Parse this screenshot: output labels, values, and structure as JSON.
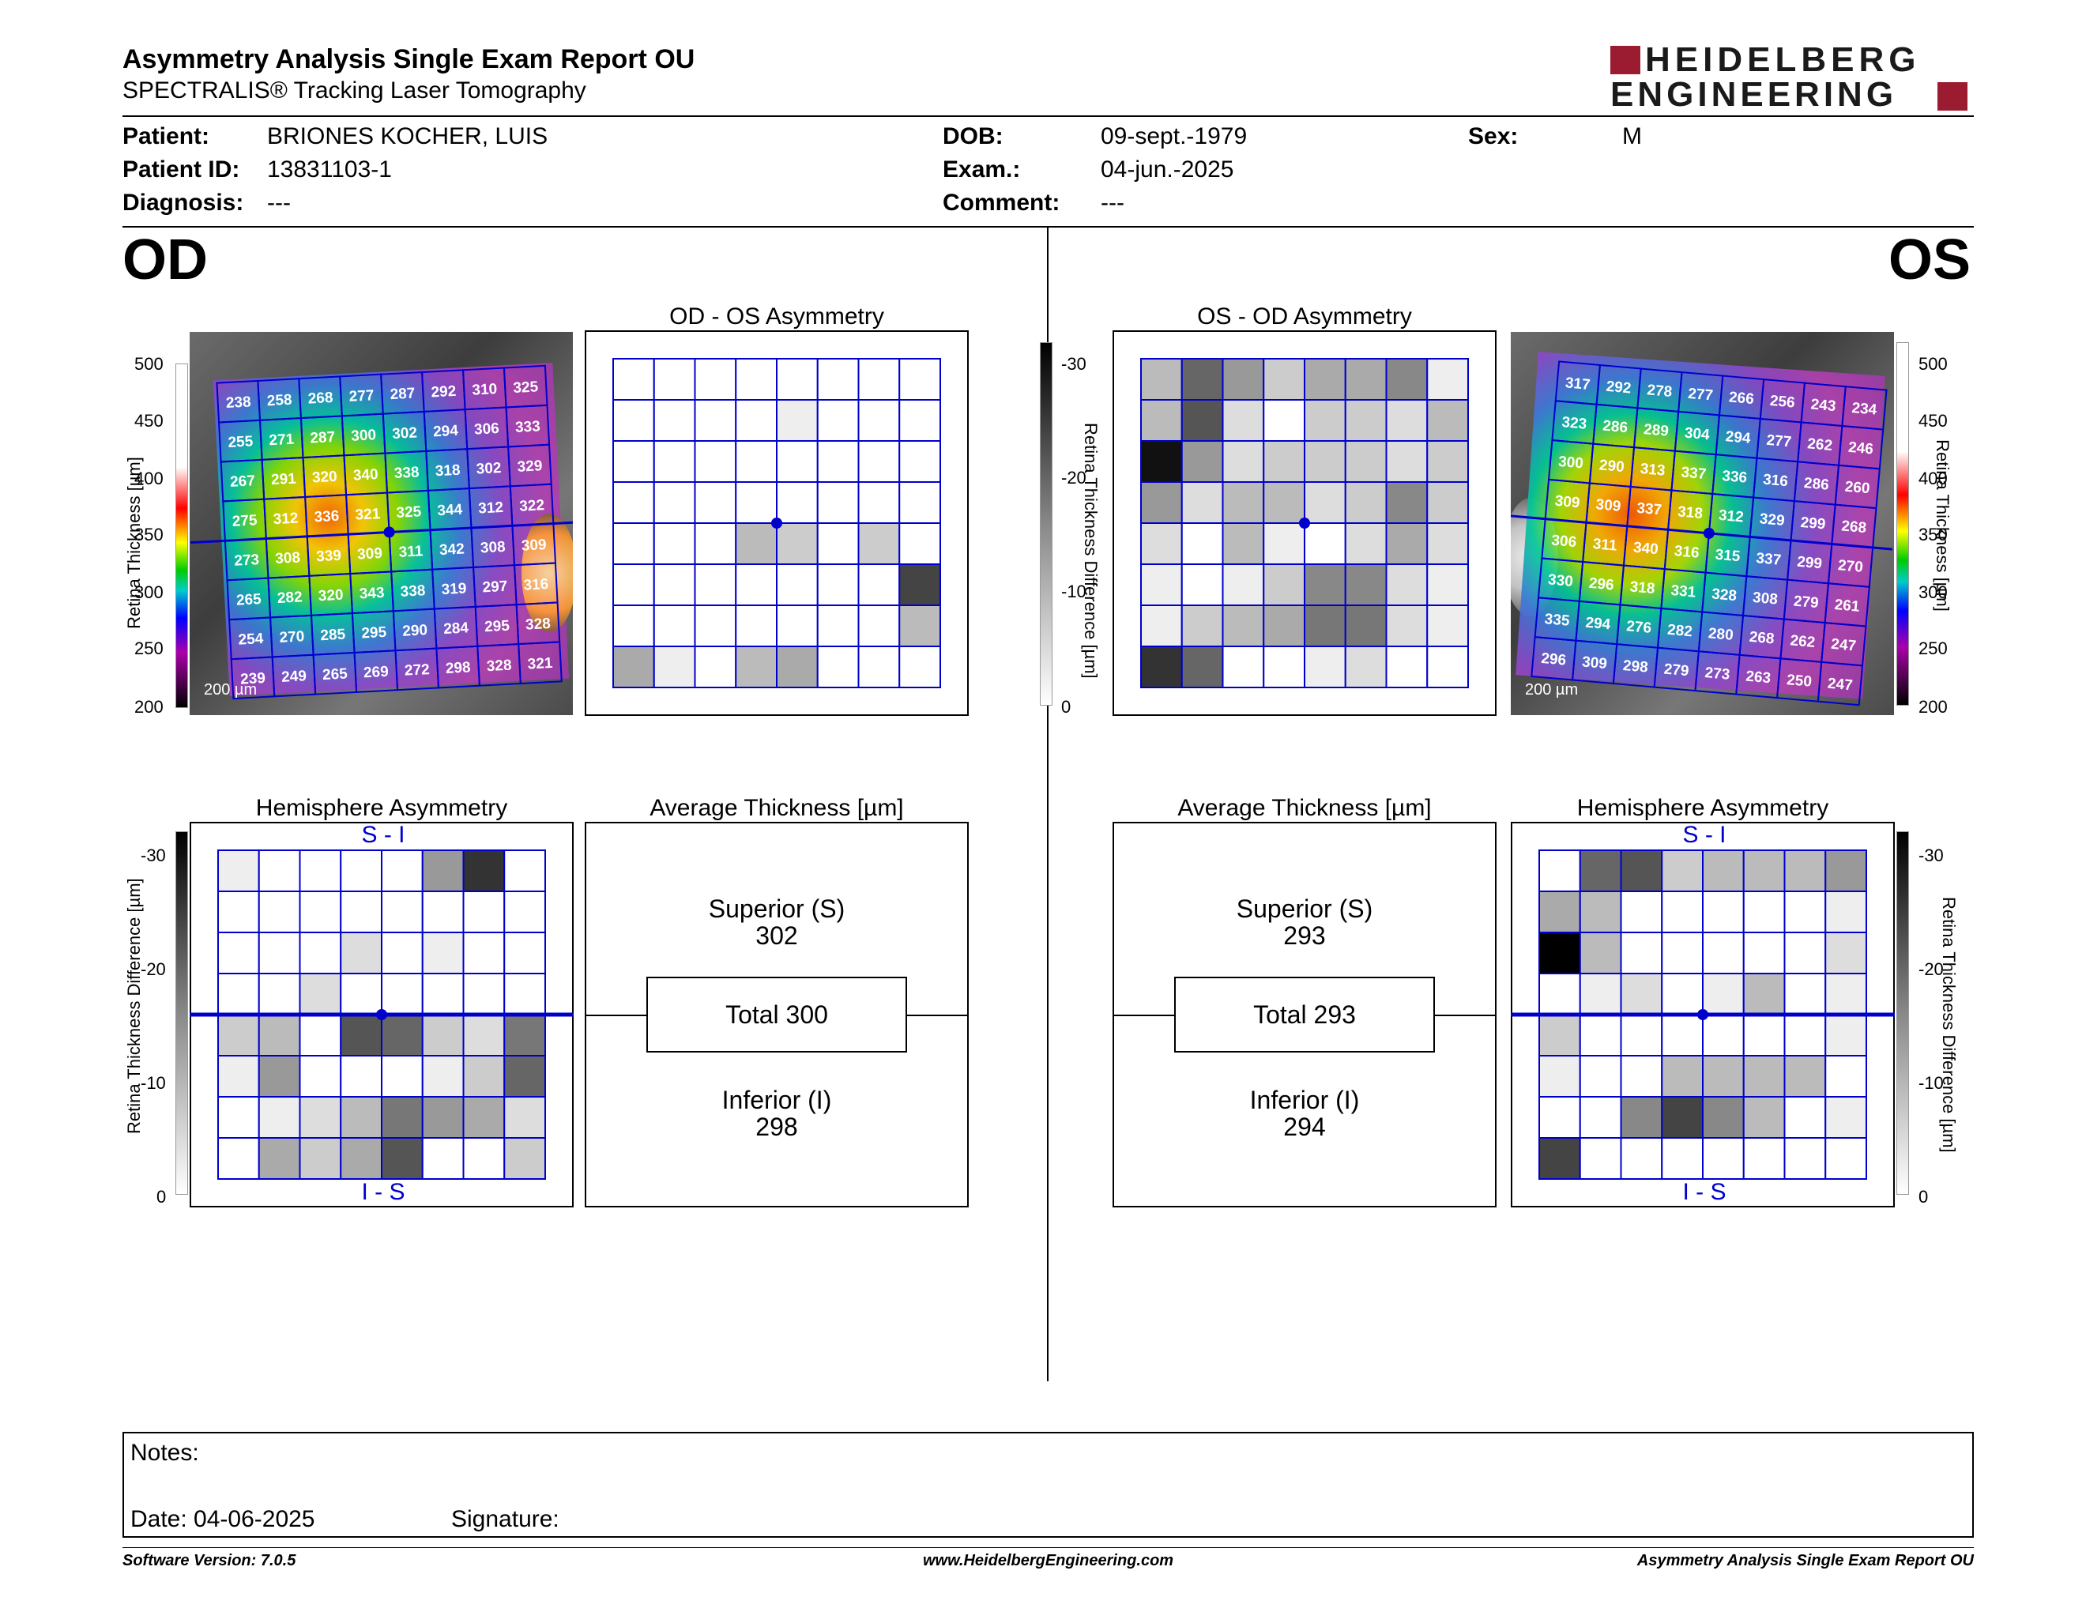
{
  "header": {
    "title": "Asymmetry Analysis Single Exam Report OU",
    "subtitle": "SPECTRALIS® Tracking Laser Tomography",
    "logo_line1": "HEIDELBERG",
    "logo_line2": "ENGINEERING"
  },
  "patient": {
    "patient_label": "Patient:",
    "patient_value": "BRIONES KOCHER, LUIS",
    "id_label": "Patient ID:",
    "id_value": "13831103-1",
    "diagnosis_label": "Diagnosis:",
    "diagnosis_value": "---",
    "dob_label": "DOB:",
    "dob_value": "09-sept.-1979",
    "exam_label": "Exam.:",
    "exam_value": "04-jun.-2025",
    "comment_label": "Comment:",
    "comment_value": "---",
    "sex_label": "Sex:",
    "sex_value": "M"
  },
  "eyes": {
    "left": "OD",
    "right": "OS"
  },
  "colorbar": {
    "thickness_label": "Retina Thickness [µm]",
    "thickness_ticks": [
      "500",
      "450",
      "400",
      "350",
      "300",
      "250",
      "200"
    ],
    "diff_label": "Retina Thickness Difference [µm]",
    "diff_ticks": [
      "-30",
      "-20",
      "-10",
      "0"
    ],
    "scale_label": "200 µm"
  },
  "od": {
    "thickness_grid": [
      [
        "238",
        "258",
        "268",
        "277",
        "287",
        "292",
        "310",
        "325"
      ],
      [
        "255",
        "271",
        "287",
        "300",
        "302",
        "294",
        "306",
        "333"
      ],
      [
        "267",
        "291",
        "320",
        "340",
        "338",
        "318",
        "302",
        "329"
      ],
      [
        "275",
        "312",
        "336",
        "321",
        "325",
        "344",
        "312",
        "322"
      ],
      [
        "273",
        "308",
        "339",
        "309",
        "311",
        "342",
        "308",
        "309"
      ],
      [
        "265",
        "282",
        "320",
        "343",
        "338",
        "319",
        "297",
        "316"
      ],
      [
        "254",
        "270",
        "285",
        "295",
        "290",
        "284",
        "295",
        "328"
      ],
      [
        "239",
        "249",
        "265",
        "269",
        "272",
        "298",
        "328",
        "321"
      ]
    ],
    "asym_title": "OD - OS Asymmetry",
    "asym_grid": [
      [
        0,
        0,
        0,
        0,
        0,
        0,
        0,
        0
      ],
      [
        0,
        0,
        0,
        0,
        2,
        0,
        0,
        0
      ],
      [
        0,
        0,
        0,
        0,
        0,
        0,
        0,
        0
      ],
      [
        0,
        0,
        0,
        0,
        0,
        0,
        0,
        0
      ],
      [
        0,
        0,
        0,
        8,
        6,
        0,
        6,
        0
      ],
      [
        0,
        0,
        0,
        0,
        0,
        0,
        0,
        22
      ],
      [
        0,
        0,
        0,
        0,
        0,
        0,
        0,
        8
      ],
      [
        10,
        2,
        0,
        8,
        10,
        0,
        0,
        0
      ]
    ],
    "hemi_title": "Hemisphere Asymmetry",
    "hemi_top": "S - I",
    "hemi_bottom": "I - S",
    "hemi_grid": [
      [
        2,
        0,
        0,
        0,
        0,
        12,
        24,
        0
      ],
      [
        0,
        0,
        0,
        0,
        0,
        0,
        0,
        0
      ],
      [
        0,
        0,
        0,
        4,
        0,
        2,
        0,
        0
      ],
      [
        0,
        0,
        4,
        0,
        0,
        0,
        0,
        0
      ],
      [
        6,
        8,
        0,
        20,
        18,
        6,
        4,
        16
      ],
      [
        2,
        12,
        0,
        0,
        0,
        2,
        6,
        18
      ],
      [
        0,
        2,
        4,
        8,
        16,
        12,
        10,
        4
      ],
      [
        0,
        10,
        6,
        10,
        20,
        0,
        0,
        6
      ]
    ],
    "avg_title": "Average Thickness [µm]",
    "superior_label": "Superior (S)",
    "superior_value": "302",
    "total": "Total 300",
    "inferior_label": "Inferior (I)",
    "inferior_value": "298"
  },
  "os": {
    "thickness_grid": [
      [
        "317",
        "292",
        "278",
        "277",
        "266",
        "256",
        "243",
        "234"
      ],
      [
        "323",
        "286",
        "289",
        "304",
        "294",
        "277",
        "262",
        "246"
      ],
      [
        "300",
        "290",
        "313",
        "337",
        "336",
        "316",
        "286",
        "260"
      ],
      [
        "309",
        "309",
        "337",
        "318",
        "312",
        "329",
        "299",
        "268"
      ],
      [
        "306",
        "311",
        "340",
        "316",
        "315",
        "337",
        "299",
        "270"
      ],
      [
        "330",
        "296",
        "318",
        "331",
        "328",
        "308",
        "279",
        "261"
      ],
      [
        "335",
        "294",
        "276",
        "282",
        "280",
        "268",
        "262",
        "247"
      ],
      [
        "296",
        "309",
        "298",
        "279",
        "273",
        "263",
        "250",
        "247"
      ]
    ],
    "asym_title": "OS - OD Asymmetry",
    "asym_grid": [
      [
        8,
        18,
        12,
        6,
        10,
        10,
        14,
        2
      ],
      [
        8,
        20,
        4,
        0,
        6,
        6,
        4,
        8
      ],
      [
        28,
        12,
        4,
        6,
        6,
        6,
        4,
        6
      ],
      [
        12,
        4,
        8,
        8,
        4,
        6,
        14,
        6
      ],
      [
        4,
        0,
        8,
        2,
        0,
        4,
        10,
        4
      ],
      [
        2,
        0,
        2,
        6,
        14,
        14,
        4,
        2
      ],
      [
        2,
        6,
        8,
        10,
        16,
        16,
        4,
        2
      ],
      [
        24,
        18,
        0,
        0,
        2,
        4,
        0,
        0
      ]
    ],
    "hemi_title": "Hemisphere Asymmetry",
    "hemi_top": "S - I",
    "hemi_bottom": "I - S",
    "hemi_grid": [
      [
        0,
        18,
        20,
        6,
        8,
        8,
        8,
        12
      ],
      [
        10,
        8,
        0,
        0,
        0,
        0,
        0,
        2
      ],
      [
        30,
        8,
        0,
        0,
        0,
        0,
        0,
        4
      ],
      [
        0,
        2,
        4,
        0,
        2,
        8,
        0,
        2
      ],
      [
        6,
        0,
        0,
        0,
        0,
        0,
        0,
        2
      ],
      [
        2,
        0,
        0,
        8,
        8,
        8,
        8,
        0
      ],
      [
        0,
        0,
        14,
        22,
        14,
        8,
        0,
        2
      ],
      [
        22,
        0,
        0,
        0,
        0,
        0,
        0,
        0
      ]
    ],
    "avg_title": "Average Thickness [µm]",
    "superior_label": "Superior (S)",
    "superior_value": "293",
    "total": "Total 293",
    "inferior_label": "Inferior (I)",
    "inferior_value": "294"
  },
  "notes": {
    "notes_label": "Notes:",
    "date_label": "Date: 04-06-2025",
    "signature_label": "Signature:"
  },
  "footer": {
    "left": "Software Version: 7.0.5",
    "center": "www.HeidelbergEngineering.com",
    "right": "Asymmetry Analysis Single Exam Report OU"
  },
  "colors": {
    "grid_blue": "#0000cc",
    "logo_red": "#9b1b30",
    "logo_dark": "#1a1a1a"
  }
}
